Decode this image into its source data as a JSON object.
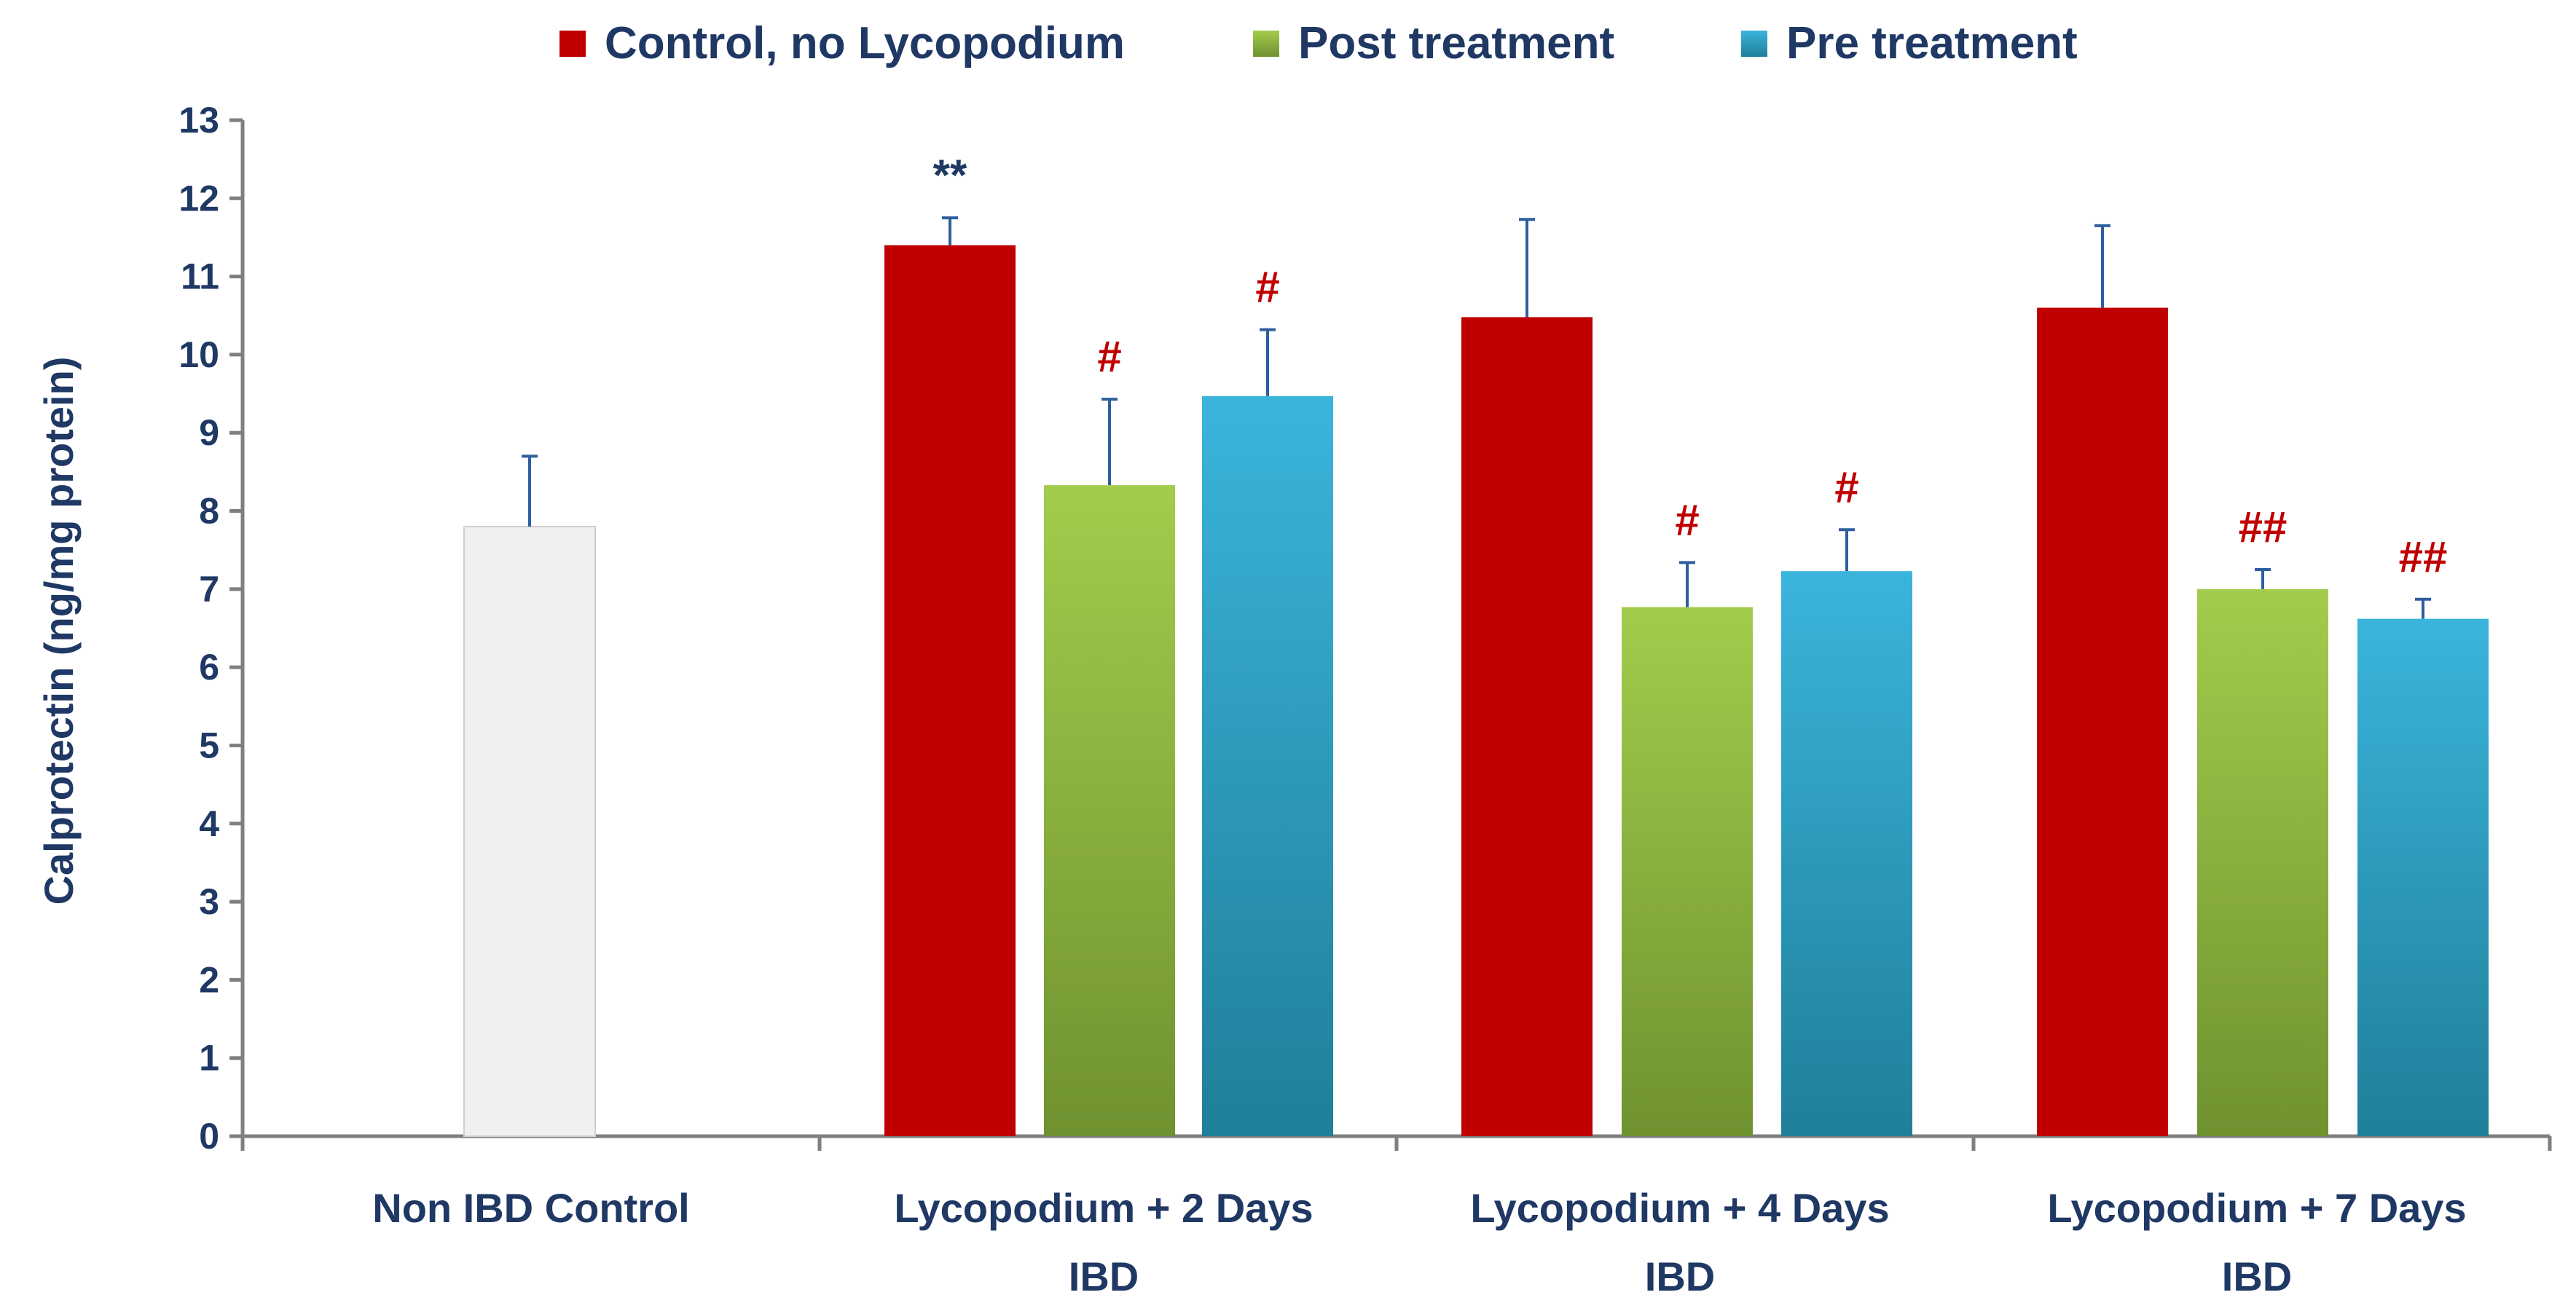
{
  "chart_data": {
    "type": "bar",
    "title": "",
    "xlabel": "",
    "ylabel": "Calprotectin (ng/mg protein)",
    "ylim": [
      0,
      13
    ],
    "yticks": [
      "0",
      "1",
      "2",
      "3",
      "4",
      "5",
      "6",
      "7",
      "8",
      "9",
      "10",
      "11",
      "12",
      "13"
    ],
    "grid": false,
    "legend_position": "top-center",
    "categories": [
      {
        "line1": "Non IBD Control",
        "line2": ""
      },
      {
        "line1": "Lycopodium + 2 Days",
        "line2": "IBD"
      },
      {
        "line1": "Lycopodium + 4 Days",
        "line2": "IBD"
      },
      {
        "line1": "Lycopodium + 7 Days",
        "line2": "IBD"
      }
    ],
    "legend": [
      {
        "name": "Control, no Lycopodium",
        "color": "#c00000"
      },
      {
        "name": "Post treatment",
        "color": "#8db73d"
      },
      {
        "name": "Pre treatment",
        "color": "#31a5c9"
      }
    ],
    "bars": [
      {
        "category": 0,
        "series": "Non IBD Control",
        "value": 7.8,
        "error": 0.9,
        "annotation": "",
        "color": "#f0f0f0"
      },
      {
        "category": 1,
        "series": "Control, no Lycopodium",
        "value": 11.4,
        "error": 0.35,
        "annotation": "**",
        "color": "#c00000"
      },
      {
        "category": 1,
        "series": "Post treatment",
        "value": 8.33,
        "error": 1.1,
        "annotation": "#",
        "color": "#8db73d"
      },
      {
        "category": 1,
        "series": "Pre treatment",
        "value": 9.47,
        "error": 0.85,
        "annotation": "#",
        "color": "#31a5c9"
      },
      {
        "category": 2,
        "series": "Control, no Lycopodium",
        "value": 10.48,
        "error": 1.25,
        "annotation": "",
        "color": "#c00000"
      },
      {
        "category": 2,
        "series": "Post treatment",
        "value": 6.77,
        "error": 0.57,
        "annotation": "#",
        "color": "#8db73d"
      },
      {
        "category": 2,
        "series": "Pre treatment",
        "value": 7.23,
        "error": 0.53,
        "annotation": "#",
        "color": "#31a5c9"
      },
      {
        "category": 3,
        "series": "Control, no Lycopodium",
        "value": 10.6,
        "error": 1.05,
        "annotation": "",
        "color": "#c00000"
      },
      {
        "category": 3,
        "series": "Post treatment",
        "value": 7.0,
        "error": 0.25,
        "annotation": "##",
        "color": "#8db73d"
      },
      {
        "category": 3,
        "series": "Pre treatment",
        "value": 6.62,
        "error": 0.25,
        "annotation": "##",
        "color": "#31a5c9"
      }
    ]
  }
}
